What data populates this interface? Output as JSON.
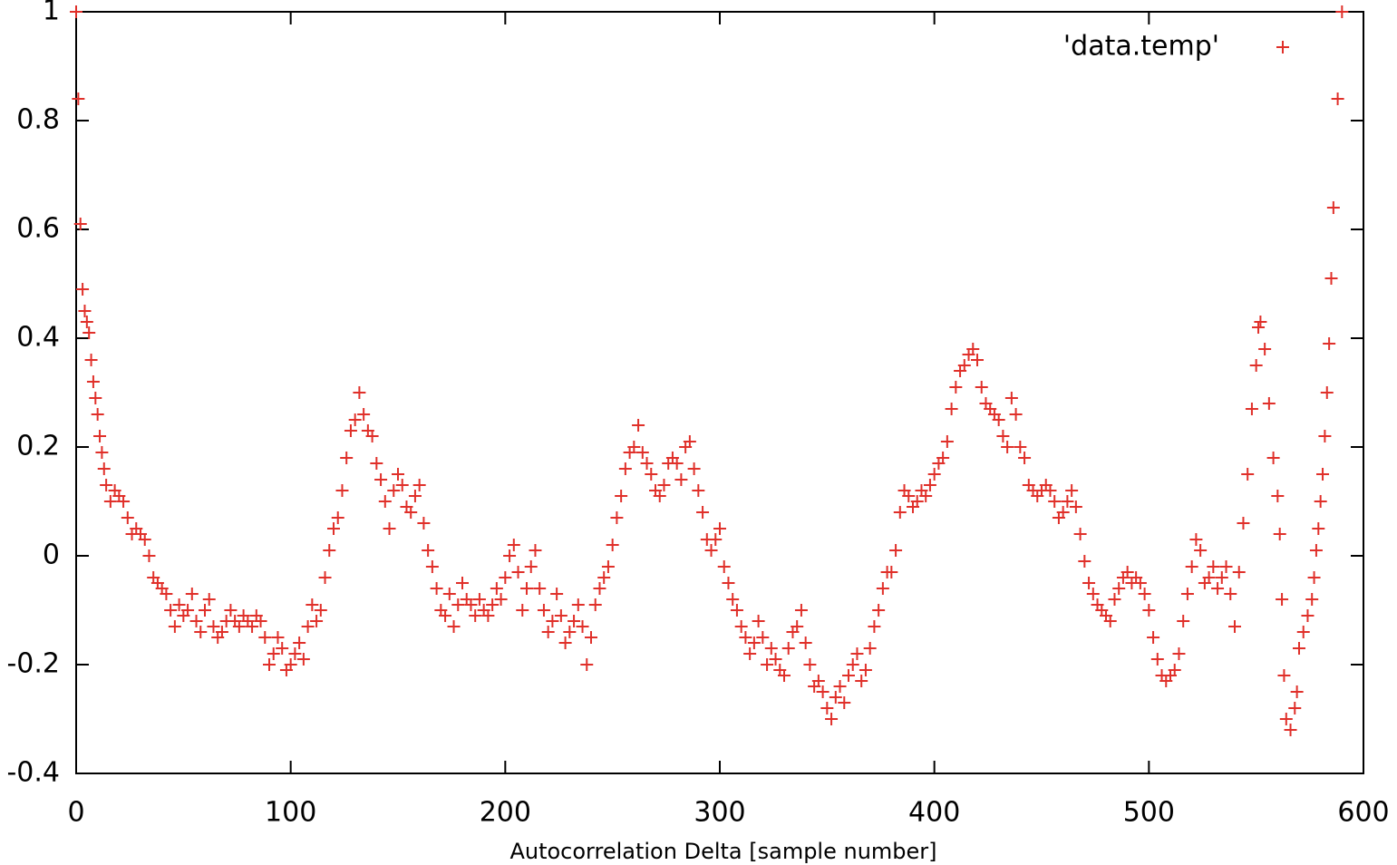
{
  "chart_data": {
    "type": "scatter",
    "xlabel": "Autocorrelation Delta [sample number]",
    "xlim": [
      0,
      600
    ],
    "xticks": [
      0,
      100,
      200,
      300,
      400,
      500,
      600
    ],
    "ylim": [
      -0.4,
      1
    ],
    "yticks": [
      -0.4,
      -0.2,
      0,
      0.2,
      0.4,
      0.6,
      0.8,
      1
    ],
    "legend": "top-right",
    "series": [
      {
        "name": "'data.temp'",
        "color": "#e0302a",
        "x": [
          0,
          1,
          2,
          3,
          4,
          5,
          6,
          7,
          8,
          9,
          10,
          11,
          12,
          13,
          14,
          16,
          18,
          20,
          22,
          24,
          26,
          28,
          30,
          32,
          34,
          36,
          38,
          40,
          42,
          44,
          46,
          48,
          50,
          52,
          54,
          56,
          58,
          60,
          62,
          64,
          66,
          68,
          70,
          72,
          74,
          76,
          78,
          80,
          82,
          84,
          86,
          88,
          90,
          92,
          94,
          96,
          98,
          100,
          102,
          104,
          106,
          108,
          110,
          112,
          114,
          116,
          118,
          120,
          122,
          124,
          126,
          128,
          130,
          132,
          134,
          136,
          138,
          140,
          142,
          144,
          146,
          148,
          150,
          152,
          154,
          156,
          158,
          160,
          162,
          164,
          166,
          168,
          170,
          172,
          174,
          176,
          178,
          180,
          182,
          184,
          186,
          188,
          190,
          192,
          194,
          196,
          198,
          200,
          202,
          204,
          206,
          208,
          210,
          212,
          214,
          216,
          218,
          220,
          222,
          224,
          226,
          228,
          230,
          232,
          234,
          236,
          238,
          240,
          242,
          244,
          246,
          248,
          250,
          252,
          254,
          256,
          258,
          260,
          262,
          264,
          266,
          268,
          270,
          272,
          274,
          276,
          278,
          280,
          282,
          284,
          286,
          288,
          290,
          292,
          294,
          296,
          298,
          300,
          302,
          304,
          306,
          308,
          310,
          312,
          314,
          316,
          318,
          320,
          322,
          324,
          326,
          328,
          330,
          332,
          334,
          336,
          338,
          340,
          342,
          344,
          346,
          348,
          350,
          352,
          354,
          356,
          358,
          360,
          362,
          364,
          366,
          368,
          370,
          372,
          374,
          376,
          378,
          380,
          382,
          384,
          386,
          388,
          390,
          392,
          394,
          396,
          398,
          400,
          402,
          404,
          406,
          408,
          410,
          412,
          414,
          416,
          418,
          420,
          422,
          424,
          426,
          428,
          430,
          432,
          434,
          436,
          438,
          440,
          442,
          444,
          446,
          448,
          450,
          452,
          454,
          456,
          458,
          460,
          462,
          464,
          466,
          468,
          470,
          472,
          474,
          476,
          478,
          480,
          482,
          484,
          486,
          488,
          490,
          492,
          494,
          496,
          498,
          500,
          502,
          504,
          506,
          508,
          510,
          512,
          514,
          516,
          518,
          520,
          522,
          524,
          526,
          528,
          530,
          532,
          534,
          536,
          538,
          540,
          542,
          544,
          546,
          548,
          550,
          551,
          552,
          554,
          556,
          558,
          560,
          561,
          562,
          563,
          564,
          566,
          568,
          569,
          570,
          572,
          574,
          576,
          577,
          578,
          579,
          580,
          581,
          582,
          583,
          584,
          585,
          586,
          588,
          590
        ],
        "values": [
          1.0,
          0.84,
          0.61,
          0.49,
          0.45,
          0.43,
          0.41,
          0.36,
          0.32,
          0.29,
          0.26,
          0.22,
          0.19,
          0.16,
          0.13,
          0.1,
          0.12,
          0.11,
          0.1,
          0.07,
          0.04,
          0.05,
          0.04,
          0.03,
          0.0,
          -0.04,
          -0.05,
          -0.06,
          -0.07,
          -0.1,
          -0.13,
          -0.09,
          -0.11,
          -0.1,
          -0.07,
          -0.12,
          -0.14,
          -0.1,
          -0.08,
          -0.13,
          -0.15,
          -0.14,
          -0.12,
          -0.1,
          -0.12,
          -0.13,
          -0.11,
          -0.12,
          -0.13,
          -0.11,
          -0.12,
          -0.15,
          -0.2,
          -0.18,
          -0.15,
          -0.17,
          -0.21,
          -0.2,
          -0.18,
          -0.16,
          -0.19,
          -0.13,
          -0.09,
          -0.12,
          -0.1,
          -0.04,
          0.01,
          0.05,
          0.07,
          0.12,
          0.18,
          0.23,
          0.25,
          0.3,
          0.26,
          0.23,
          0.22,
          0.17,
          0.14,
          0.1,
          0.05,
          0.12,
          0.15,
          0.13,
          0.09,
          0.08,
          0.11,
          0.13,
          0.06,
          0.01,
          -0.02,
          -0.06,
          -0.1,
          -0.11,
          -0.07,
          -0.13,
          -0.09,
          -0.05,
          -0.08,
          -0.09,
          -0.11,
          -0.08,
          -0.1,
          -0.11,
          -0.09,
          -0.06,
          -0.08,
          -0.04,
          0.0,
          0.02,
          -0.03,
          -0.1,
          -0.06,
          -0.02,
          0.01,
          -0.06,
          -0.1,
          -0.14,
          -0.12,
          -0.07,
          -0.11,
          -0.16,
          -0.14,
          -0.12,
          -0.09,
          -0.13,
          -0.2,
          -0.15,
          -0.09,
          -0.06,
          -0.04,
          -0.02,
          0.02,
          0.07,
          0.11,
          0.16,
          0.19,
          0.2,
          0.24,
          0.19,
          0.17,
          0.15,
          0.12,
          0.11,
          0.13,
          0.17,
          0.18,
          0.17,
          0.14,
          0.2,
          0.21,
          0.16,
          0.12,
          0.08,
          0.03,
          0.01,
          0.03,
          0.05,
          -0.02,
          -0.05,
          -0.08,
          -0.1,
          -0.13,
          -0.15,
          -0.18,
          -0.16,
          -0.12,
          -0.15,
          -0.2,
          -0.17,
          -0.19,
          -0.21,
          -0.22,
          -0.17,
          -0.14,
          -0.13,
          -0.1,
          -0.16,
          -0.2,
          -0.24,
          -0.23,
          -0.25,
          -0.28,
          -0.3,
          -0.26,
          -0.24,
          -0.27,
          -0.22,
          -0.2,
          -0.18,
          -0.23,
          -0.21,
          -0.17,
          -0.13,
          -0.1,
          -0.06,
          -0.03,
          -0.03,
          0.01,
          0.08,
          0.12,
          0.11,
          0.09,
          0.1,
          0.12,
          0.11,
          0.13,
          0.15,
          0.17,
          0.18,
          0.21,
          0.27,
          0.31,
          0.34,
          0.35,
          0.37,
          0.38,
          0.36,
          0.31,
          0.28,
          0.27,
          0.26,
          0.25,
          0.22,
          0.2,
          0.29,
          0.26,
          0.2,
          0.18,
          0.13,
          0.12,
          0.11,
          0.12,
          0.13,
          0.12,
          0.1,
          0.07,
          0.08,
          0.1,
          0.12,
          0.09,
          0.04,
          -0.01,
          -0.05,
          -0.07,
          -0.09,
          -0.1,
          -0.11,
          -0.12,
          -0.08,
          -0.06,
          -0.04,
          -0.03,
          -0.05,
          -0.04,
          -0.05,
          -0.07,
          -0.1,
          -0.15,
          -0.19,
          -0.22,
          -0.23,
          -0.22,
          -0.21,
          -0.18,
          -0.12,
          -0.07,
          -0.02,
          0.03,
          0.01,
          -0.05,
          -0.04,
          -0.02,
          -0.06,
          -0.04,
          -0.02,
          -0.07,
          -0.13,
          -0.03,
          0.06,
          0.15,
          0.27,
          0.35,
          0.42,
          0.43,
          0.38,
          0.28,
          0.18,
          0.11,
          0.04,
          -0.08,
          -0.22,
          -0.3,
          -0.32,
          -0.28,
          -0.25,
          -0.17,
          -0.14,
          -0.11,
          -0.08,
          -0.04,
          0.01,
          0.05,
          0.1,
          0.15,
          0.22,
          0.3,
          0.39,
          0.51,
          0.64,
          0.84,
          1.0
        ]
      }
    ]
  }
}
